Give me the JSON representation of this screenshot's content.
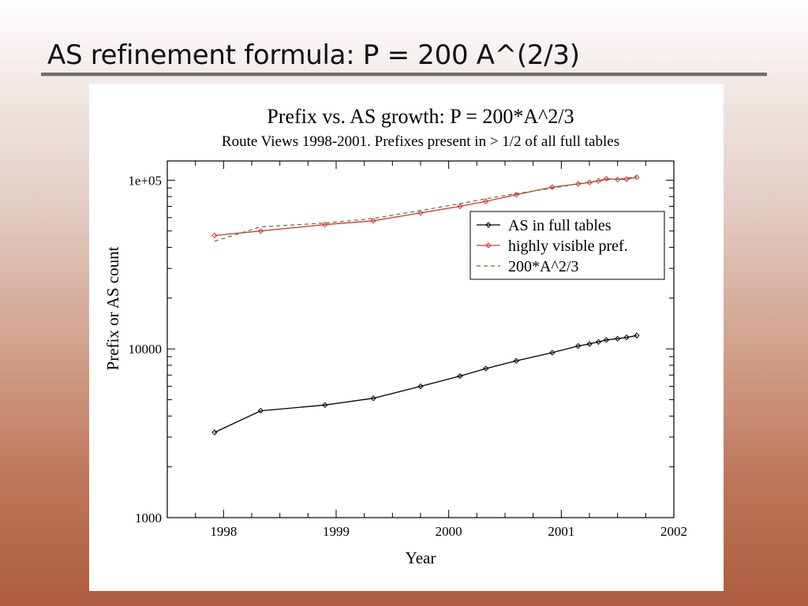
{
  "slide": {
    "title": "AS refinement formula: P = 200 A^(2/3)"
  },
  "chart_data": {
    "type": "line",
    "title": "Prefix vs. AS growth: P = 200*A^2/3",
    "subtitle": "Route Views 1998-2001. Prefixes present in > 1/2 of all full tables",
    "xlabel": "Year",
    "ylabel": "Prefix or AS count",
    "xlim": [
      1997.5,
      2002
    ],
    "ylim": [
      1000,
      130000
    ],
    "yscale": "log",
    "xticks": [
      1998,
      1999,
      2000,
      2001,
      2002
    ],
    "xtick_labels": [
      "1998",
      "1999",
      "2000",
      "2001",
      "2002"
    ],
    "yticks": [
      1000,
      10000,
      100000
    ],
    "ytick_labels": [
      "1000",
      "10000",
      "1e+05"
    ],
    "legend_position": "top-right",
    "series": [
      {
        "name": "AS in full tables",
        "color": "#000000",
        "style": "line-markers",
        "x": [
          1997.92,
          1998.33,
          1998.9,
          1999.33,
          1999.75,
          2000.1,
          2000.33,
          2000.6,
          2000.92,
          2001.15,
          2001.25,
          2001.33,
          2001.4,
          2001.5,
          2001.58,
          2001.67
        ],
        "y": [
          3200,
          4300,
          4650,
          5100,
          6000,
          6900,
          7650,
          8500,
          9500,
          10400,
          10700,
          11000,
          11300,
          11500,
          11700,
          12000
        ]
      },
      {
        "name": "highly visible pref.",
        "color": "#e03030",
        "style": "line-markers",
        "x": [
          1997.92,
          1998.33,
          1998.9,
          1999.33,
          1999.75,
          2000.1,
          2000.33,
          2000.6,
          2000.92,
          2001.15,
          2001.25,
          2001.33,
          2001.4,
          2001.5,
          2001.58,
          2001.67
        ],
        "y": [
          47000,
          50000,
          54500,
          57500,
          64000,
          70000,
          75000,
          82000,
          91000,
          95000,
          97000,
          99000,
          102000,
          101000,
          101500,
          104000
        ]
      },
      {
        "name": "200*A^2/3",
        "color": "#2e8b2e",
        "style": "dashed",
        "x": [
          1997.92,
          1998.33,
          1998.9,
          1999.33,
          1999.75,
          2000.1,
          2000.33,
          2000.6,
          2000.92,
          2001.15,
          2001.25,
          2001.33,
          2001.4,
          2001.5,
          2001.58,
          2001.67
        ],
        "y": [
          43500,
          52900,
          55700,
          59300,
          66100,
          72600,
          77600,
          83300,
          89600,
          95300,
          97000,
          98800,
          100500,
          101700,
          102800,
          104800
        ]
      }
    ]
  }
}
